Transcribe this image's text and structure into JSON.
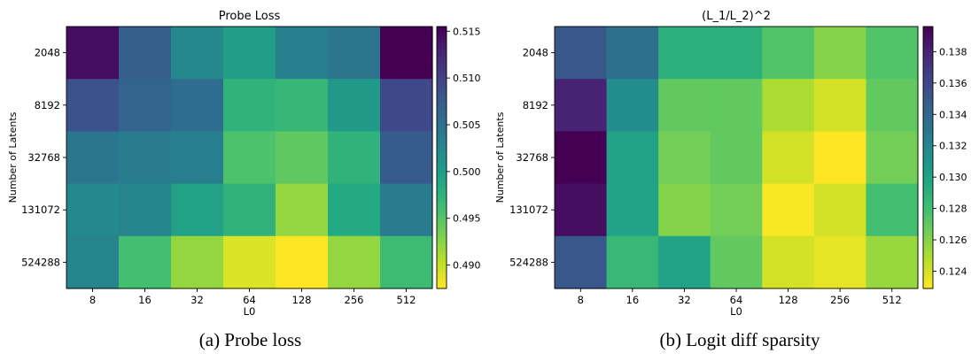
{
  "captions": {
    "a": "(a) Probe loss",
    "b": "(b) Logit diff sparsity"
  },
  "chart_data": [
    {
      "type": "heatmap",
      "title": "Probe Loss",
      "xlabel": "L0",
      "ylabel": "Number of Latents",
      "x_categories": [
        "8",
        "16",
        "32",
        "64",
        "128",
        "256",
        "512"
      ],
      "y_categories": [
        "2048",
        "8192",
        "32768",
        "131072",
        "524288"
      ],
      "colormap": "viridis_r",
      "vmin": 0.4875,
      "vmax": 0.5155,
      "colorbar_ticks": [
        "0.515",
        "0.510",
        "0.505",
        "0.500",
        "0.495",
        "0.490"
      ],
      "values": [
        [
          0.5145,
          0.507,
          0.5025,
          0.5,
          0.5035,
          0.5045,
          0.5155
        ],
        [
          0.5085,
          0.5065,
          0.5055,
          0.4975,
          0.497,
          0.5005,
          0.5095
        ],
        [
          0.5045,
          0.504,
          0.5035,
          0.4955,
          0.4945,
          0.4975,
          0.5075
        ],
        [
          0.5025,
          0.503,
          0.4995,
          0.4975,
          0.492,
          0.4985,
          0.504
        ],
        [
          0.503,
          0.496,
          0.492,
          0.489,
          0.4875,
          0.492,
          0.4965
        ]
      ]
    },
    {
      "type": "heatmap",
      "title": "(L_1/L_2)^2",
      "xlabel": "L0",
      "ylabel": "Number of Latents",
      "x_categories": [
        "8",
        "16",
        "32",
        "64",
        "128",
        "256",
        "512"
      ],
      "y_categories": [
        "2048",
        "8192",
        "32768",
        "131072",
        "524288"
      ],
      "colormap": "viridis_r",
      "vmin": 0.1229,
      "vmax": 0.1396,
      "colorbar_ticks": [
        "0.138",
        "0.136",
        "0.134",
        "0.132",
        "0.130",
        "0.128",
        "0.126",
        "0.124"
      ],
      "values": [
        [
          0.135,
          0.1335,
          0.129,
          0.129,
          0.1275,
          0.126,
          0.1275
        ],
        [
          0.138,
          0.1315,
          0.127,
          0.127,
          0.125,
          0.124,
          0.127
        ],
        [
          0.1396,
          0.13,
          0.1265,
          0.127,
          0.124,
          0.1229,
          0.1265
        ],
        [
          0.139,
          0.13,
          0.126,
          0.1265,
          0.123,
          0.124,
          0.128
        ],
        [
          0.135,
          0.1285,
          0.13,
          0.127,
          0.124,
          0.1235,
          0.1255
        ]
      ]
    }
  ]
}
